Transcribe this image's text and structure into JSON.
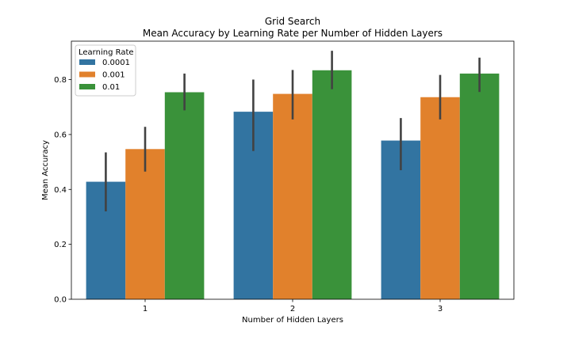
{
  "chart_data": {
    "type": "bar",
    "title": "Grid Search",
    "subtitle": "Mean Accuracy by Learning Rate per Number of Hidden Layers",
    "xlabel": "Number of Hidden Layers",
    "ylabel": "Mean Accuracy",
    "categories": [
      "1",
      "2",
      "3"
    ],
    "ylim": [
      0,
      0.94
    ],
    "yticks": [
      "0.0",
      "0.2",
      "0.4",
      "0.6",
      "0.8"
    ],
    "legend": {
      "title": "Learning Rate",
      "placement": "top-left"
    },
    "grid": false,
    "series": [
      {
        "name": "0.0001",
        "color": "#3274a1",
        "values": [
          0.428,
          0.683,
          0.578
        ],
        "ci_low": [
          0.32,
          0.54,
          0.47
        ],
        "ci_high": [
          0.535,
          0.8,
          0.66
        ]
      },
      {
        "name": "0.001",
        "color": "#e1812c",
        "values": [
          0.547,
          0.748,
          0.736
        ],
        "ci_low": [
          0.465,
          0.655,
          0.655
        ],
        "ci_high": [
          0.628,
          0.835,
          0.817
        ]
      },
      {
        "name": "0.01",
        "color": "#3a923a",
        "values": [
          0.754,
          0.834,
          0.822
        ],
        "ci_low": [
          0.688,
          0.765,
          0.755
        ],
        "ci_high": [
          0.822,
          0.905,
          0.88
        ]
      }
    ]
  }
}
